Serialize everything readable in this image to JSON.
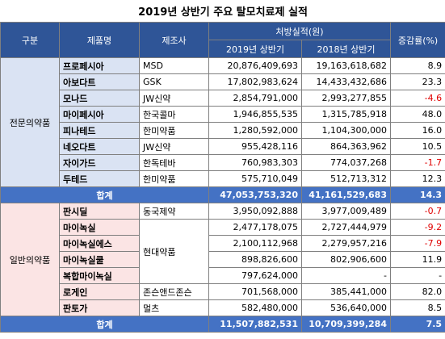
{
  "title": "2019년 상반기 주요 탈모치료제 실적",
  "header": {
    "category": "구분",
    "product": "제품명",
    "maker": "제조사",
    "sales": "처방실적(원)",
    "y2019": "2019년 상반기",
    "y2018": "2018년 상반기",
    "change": "증감률(%)"
  },
  "groups": [
    {
      "name": "전문의약품",
      "rows": [
        {
          "product": "프로페시아",
          "maker": "MSD",
          "y2019": "20,876,409,693",
          "y2018": "19,163,618,682",
          "change": "8.9"
        },
        {
          "product": "아보다트",
          "maker": "GSK",
          "y2019": "17,802,983,624",
          "y2018": "14,433,432,686",
          "change": "23.3"
        },
        {
          "product": "모나드",
          "maker": "JW신약",
          "y2019": "2,854,791,000",
          "y2018": "2,993,277,855",
          "change": "-4.6"
        },
        {
          "product": "마이페시아",
          "maker": "한국콜마",
          "y2019": "1,946,855,535",
          "y2018": "1,315,785,918",
          "change": "48.0"
        },
        {
          "product": "피나테드",
          "maker": "한미약품",
          "y2019": "1,280,592,000",
          "y2018": "1,104,300,000",
          "change": "16.0"
        },
        {
          "product": "네오다트",
          "maker": "JW신약",
          "y2019": "955,428,116",
          "y2018": "864,363,962",
          "change": "10.5"
        },
        {
          "product": "자이가드",
          "maker": "한독테바",
          "y2019": "760,983,303",
          "y2018": "774,037,268",
          "change": "-1.7"
        },
        {
          "product": "두테드",
          "maker": "한미약품",
          "y2019": "575,710,049",
          "y2018": "512,713,312",
          "change": "12.3"
        }
      ],
      "total": {
        "label": "합계",
        "y2019": "47,053,753,320",
        "y2018": "41,161,529,683",
        "change": "14.3"
      }
    },
    {
      "name": "일반의약품",
      "rows": [
        {
          "product": "판시딜",
          "maker": "동국제약",
          "y2019": "3,950,092,888",
          "y2018": "3,977,009,489",
          "change": "-0.7"
        },
        {
          "product": "마이녹실",
          "maker": "현대약품",
          "y2019": "2,477,178,075",
          "y2018": "2,727,444,979",
          "change": "-9.2"
        },
        {
          "product": "마이녹실에스",
          "maker": null,
          "y2019": "2,100,112,968",
          "y2018": "2,279,957,216",
          "change": "-7.9"
        },
        {
          "product": "마이녹실쿨",
          "maker": null,
          "y2019": "898,826,600",
          "y2018": "802,906,600",
          "change": "11.9"
        },
        {
          "product": "복합마이녹실",
          "maker": null,
          "y2019": "797,624,000",
          "y2018": "-",
          "change": "-"
        },
        {
          "product": "로게인",
          "maker": "존슨앤드존슨",
          "y2019": "701,568,000",
          "y2018": "385,441,000",
          "change": "82.0"
        },
        {
          "product": "판토가",
          "maker": "멀츠",
          "y2019": "582,480,000",
          "y2018": "536,640,000",
          "change": "8.5"
        }
      ],
      "total": {
        "label": "합계",
        "y2019": "11,507,882,531",
        "y2018": "10,709,399,284",
        "change": "7.5"
      }
    }
  ]
}
